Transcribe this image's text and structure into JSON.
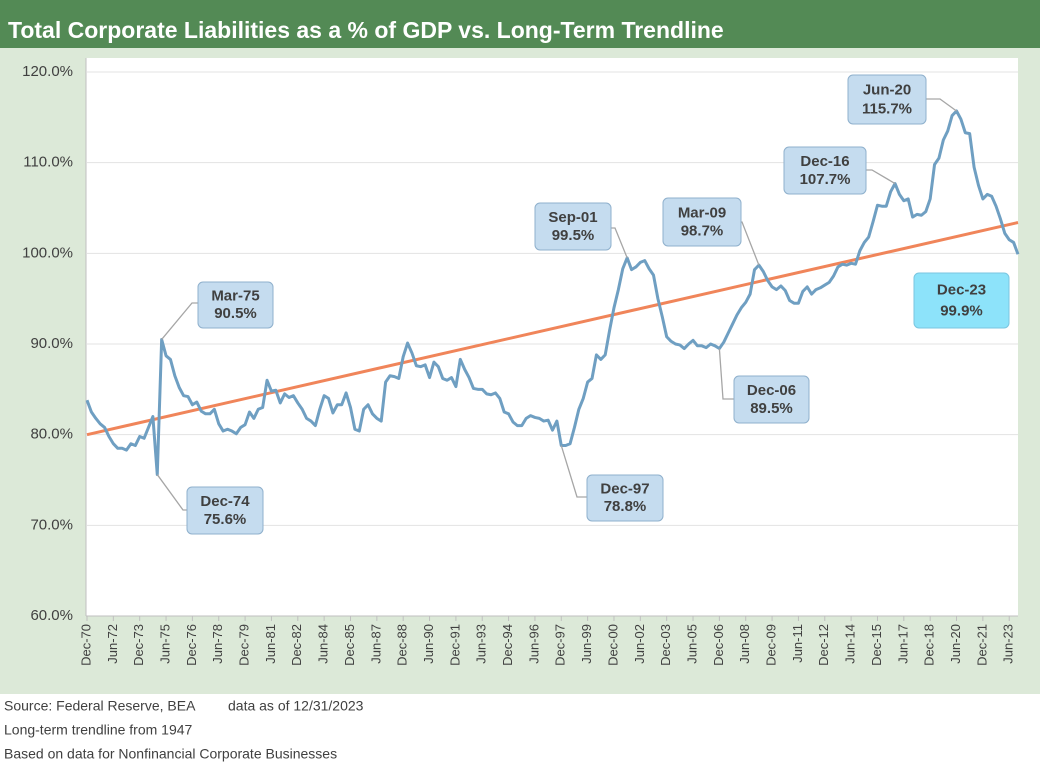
{
  "chart_data": {
    "type": "line",
    "title": "Total Corporate Liabilities as a % of GDP vs. Long-Term Trendline",
    "categories": [
      "Dec-70",
      null,
      null,
      null,
      null,
      null,
      "Jun-72",
      null,
      null,
      null,
      null,
      null,
      "Dec-73",
      null,
      null,
      null,
      null,
      null,
      "Jun-75",
      null,
      null,
      null,
      null,
      null,
      "Dec-76",
      null,
      null,
      null,
      null,
      null,
      "Jun-78",
      null,
      null,
      null,
      null,
      null,
      "Dec-79",
      null,
      null,
      null,
      null,
      null,
      "Jun-81",
      null,
      null,
      null,
      null,
      null,
      "Dec-82",
      null,
      null,
      null,
      null,
      null,
      "Jun-84",
      null,
      null,
      null,
      null,
      null,
      "Dec-85",
      null,
      null,
      null,
      null,
      null,
      "Jun-87",
      null,
      null,
      null,
      null,
      null,
      "Dec-88",
      null,
      null,
      null,
      null,
      null,
      "Jun-90",
      null,
      null,
      null,
      null,
      null,
      "Dec-91",
      null,
      null,
      null,
      null,
      null,
      "Jun-93",
      null,
      null,
      null,
      null,
      null,
      "Dec-94",
      null,
      null,
      null,
      null,
      null,
      "Jun-96",
      null,
      null,
      null,
      null,
      null,
      "Dec-97",
      null,
      null,
      null,
      null,
      null,
      "Jun-99",
      null,
      null,
      null,
      null,
      null,
      "Dec-00",
      null,
      null,
      null,
      null,
      null,
      "Jun-02",
      null,
      null,
      null,
      null,
      null,
      "Dec-03",
      null,
      null,
      null,
      null,
      null,
      "Jun-05",
      null,
      null,
      null,
      null,
      null,
      "Dec-06",
      null,
      null,
      null,
      null,
      null,
      "Jun-08",
      null,
      null,
      null,
      null,
      null,
      "Dec-09",
      null,
      null,
      null,
      null,
      null,
      "Jun-11",
      null,
      null,
      null,
      null,
      null,
      "Dec-12",
      null,
      null,
      null,
      null,
      null,
      "Jun-14",
      null,
      null,
      null,
      null,
      null,
      "Dec-15",
      null,
      null,
      null,
      null,
      null,
      "Jun-17",
      null,
      null,
      null,
      null,
      null,
      "Dec-18",
      null,
      null,
      null,
      null,
      null,
      "Jun-20",
      null,
      null,
      null,
      null,
      null,
      "Dec-21",
      null,
      null,
      null,
      null,
      null,
      "Jun-23",
      null,
      null
    ],
    "series": [
      {
        "color": "#6f9fc2",
        "values": [
          83.8,
          82.5,
          81.8,
          81.2,
          80.8,
          79.8,
          79.0,
          78.5,
          78.5,
          78.3,
          79.0,
          78.8,
          79.8,
          79.6,
          80.8,
          82.0,
          75.6,
          90.5,
          88.7,
          88.3,
          86.5,
          85.2,
          84.3,
          84.2,
          83.3,
          83.6,
          82.6,
          82.3,
          82.3,
          82.8,
          81.2,
          80.4,
          80.6,
          80.4,
          80.1,
          80.8,
          81.1,
          82.5,
          81.8,
          82.8,
          83.0,
          86.0,
          84.8,
          84.9,
          83.5,
          84.5,
          84.1,
          84.3,
          83.5,
          82.8,
          81.8,
          81.5,
          81.0,
          82.8,
          84.3,
          84.0,
          82.4,
          83.3,
          83.3,
          84.6,
          83.0,
          80.6,
          80.4,
          82.8,
          83.3,
          82.3,
          81.8,
          81.5,
          85.8,
          86.5,
          86.4,
          86.2,
          88.6,
          90.1,
          89.0,
          87.6,
          87.5,
          87.7,
          86.3,
          88.0,
          87.5,
          86.2,
          86.0,
          86.3,
          85.3,
          88.3,
          87.2,
          86.3,
          85.1,
          85.0,
          85.0,
          84.5,
          84.4,
          84.6,
          84.0,
          82.5,
          82.3,
          81.4,
          81.0,
          81.0,
          81.8,
          82.1,
          81.9,
          81.8,
          81.5,
          81.6,
          80.5,
          81.5,
          78.8,
          78.8,
          79.0,
          80.8,
          82.8,
          84.0,
          85.8,
          86.2,
          88.8,
          88.3,
          88.8,
          91.5,
          94.0,
          96.0,
          98.3,
          99.5,
          98.2,
          98.5,
          99.0,
          99.2,
          98.3,
          97.6,
          95.0,
          93.0,
          90.8,
          90.3,
          90.0,
          89.9,
          89.5,
          90.0,
          90.4,
          89.8,
          89.8,
          89.6,
          90.0,
          89.8,
          89.5,
          90.2,
          91.2,
          92.2,
          93.2,
          94.0,
          94.6,
          95.5,
          98.2,
          98.7,
          98.0,
          97.0,
          96.3,
          96.0,
          96.4,
          95.9,
          94.8,
          94.5,
          94.5,
          95.8,
          96.3,
          95.5,
          96.0,
          96.2,
          96.5,
          96.8,
          97.5,
          98.5,
          98.8,
          98.7,
          98.9,
          98.8,
          100.3,
          101.2,
          101.8,
          103.5,
          105.3,
          105.2,
          105.2,
          106.8,
          107.7,
          106.5,
          105.8,
          106.0,
          104.0,
          104.3,
          104.2,
          104.6,
          106.0,
          109.8,
          110.5,
          112.5,
          113.5,
          115.2,
          115.7,
          114.8,
          113.3,
          113.2,
          109.5,
          107.5,
          106.0,
          106.5,
          106.3,
          105.2,
          103.8,
          102.2,
          101.5,
          101.2,
          99.9
        ]
      }
    ],
    "trendline": {
      "color": "#f0855a",
      "values": [
        80.0,
        103.4
      ]
    },
    "ylim": [
      60,
      120
    ],
    "yticks": [
      {
        "value": 60,
        "label": "60.0%"
      },
      {
        "value": 70,
        "label": "70.0%"
      },
      {
        "value": 80,
        "label": "80.0%"
      },
      {
        "value": 90,
        "label": "90.0%"
      },
      {
        "value": 100,
        "label": "100.0%"
      },
      {
        "value": 110,
        "label": "110.0%"
      },
      {
        "value": 120,
        "label": "120.0%"
      }
    ],
    "grid": true,
    "annotations": [
      {
        "text": "Mar-75",
        "value": 90.5,
        "value_label": "90.5%"
      },
      {
        "text": "Dec-74",
        "value": 75.6,
        "value_label": "75.6%"
      },
      {
        "text": "Dec-97",
        "value": 78.8,
        "value_label": "78.8%"
      },
      {
        "text": "Sep-01",
        "value": 99.5,
        "value_label": "99.5%"
      },
      {
        "text": "Mar-09",
        "value": 98.7,
        "value_label": "98.7%"
      },
      {
        "text": "Dec-06",
        "value": 89.5,
        "value_label": "89.5%"
      },
      {
        "text": "Dec-16",
        "value": 107.7,
        "value_label": "107.7%"
      },
      {
        "text": "Jun-20",
        "value": 115.7,
        "value_label": "115.7%"
      },
      {
        "text": "Dec-23",
        "value": 99.9,
        "value_label": "99.9%"
      }
    ],
    "notes": [
      "Source: Federal Reserve, BEA",
      "data as of 12/31/2023",
      "Long-term trendline from 1947",
      "Based on data for Nonfinancial Corporate Businesses"
    ]
  }
}
